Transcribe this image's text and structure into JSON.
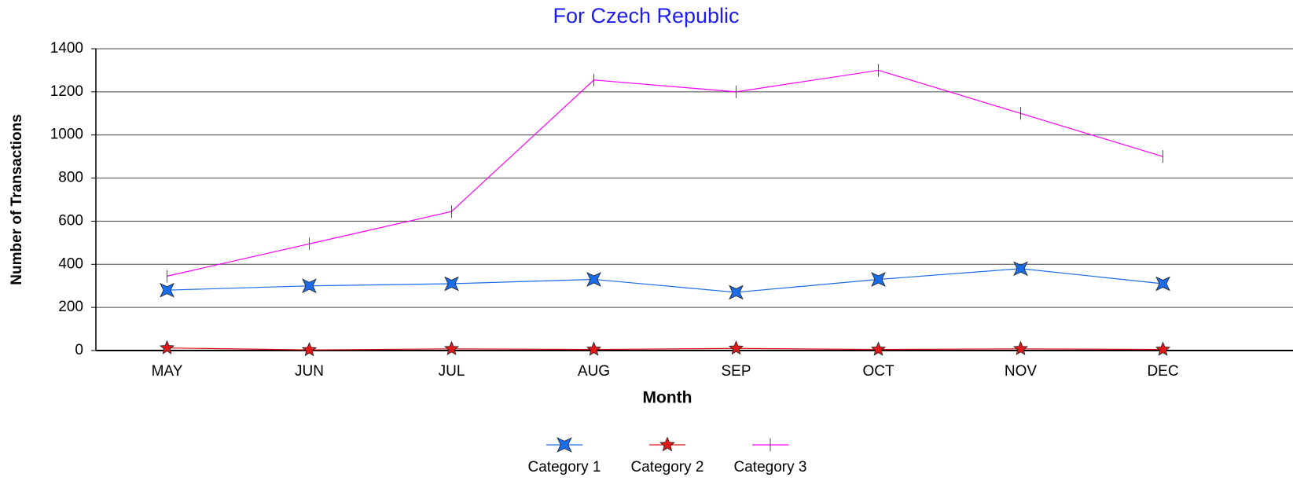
{
  "chart_data": {
    "type": "line",
    "title": "For Czech Republic",
    "x_label": "Month",
    "y_label": "Number of Transactions",
    "categories": [
      "MAY",
      "JUN",
      "JUL",
      "AUG",
      "SEP",
      "OCT",
      "NOV",
      "DEC"
    ],
    "series": [
      {
        "name": "Category 1",
        "color": "#1a6ce8",
        "marker": "cross-star",
        "values": [
          280,
          300,
          310,
          330,
          270,
          330,
          380,
          310
        ]
      },
      {
        "name": "Category 2",
        "color": "#e01818",
        "marker": "star",
        "values": [
          12,
          3,
          8,
          5,
          10,
          5,
          8,
          5
        ]
      },
      {
        "name": "Category 3",
        "color": "#ff00ff",
        "marker": "diamond",
        "values": [
          345,
          495,
          645,
          1255,
          1200,
          1300,
          1100,
          900
        ]
      }
    ],
    "ylim": [
      0,
      1400
    ],
    "yticks": [
      0,
      200,
      400,
      600,
      800,
      1000,
      1200,
      1400
    ],
    "grid": true,
    "legend": "bottom"
  }
}
